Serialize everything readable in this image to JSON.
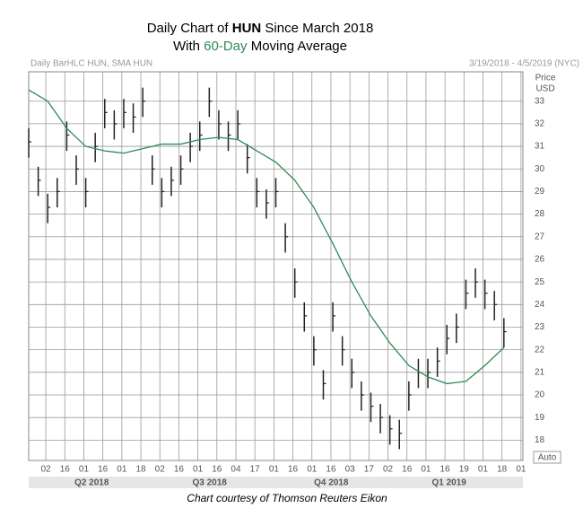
{
  "chart_data": {
    "type": "hlc",
    "title_lines": [
      [
        "Daily Chart of ",
        "HUN",
        " Since March 2018"
      ],
      [
        "With ",
        "60-Day",
        " Moving Average"
      ]
    ],
    "header_left": "Daily BarHLC HUN, SMA HUN",
    "header_right": "3/19/2018 - 4/5/2019 (NYC)",
    "y_label": [
      "Price",
      "USD"
    ],
    "auto_label": "Auto",
    "caption": "Chart courtesy of Thomson Reuters Eikon",
    "quarters": [
      {
        "label": "Q2 2018",
        "value": 19
      },
      {
        "label": "Q3 2018",
        "value": 81
      },
      {
        "label": "Q4 2018",
        "value": 145
      },
      {
        "label": "Q1 2019",
        "value": 207
      }
    ],
    "xlim": [
      0,
      260
    ],
    "ylim": [
      17.1,
      34.3
    ],
    "xticks": [
      {
        "value": 9,
        "label": "02"
      },
      {
        "value": 19,
        "label": "16"
      },
      {
        "value": 29,
        "label": "01"
      },
      {
        "value": 39,
        "label": "16"
      },
      {
        "value": 49,
        "label": "01"
      },
      {
        "value": 59,
        "label": "18"
      },
      {
        "value": 69,
        "label": "02"
      },
      {
        "value": 79,
        "label": "16"
      },
      {
        "value": 89,
        "label": "01"
      },
      {
        "value": 99,
        "label": "16"
      },
      {
        "value": 109,
        "label": "04"
      },
      {
        "value": 119,
        "label": "17"
      },
      {
        "value": 129,
        "label": "01"
      },
      {
        "value": 139,
        "label": "16"
      },
      {
        "value": 149,
        "label": "01"
      },
      {
        "value": 159,
        "label": "16"
      },
      {
        "value": 169,
        "label": "03"
      },
      {
        "value": 179,
        "label": "17"
      },
      {
        "value": 189,
        "label": "02"
      },
      {
        "value": 199,
        "label": "16"
      },
      {
        "value": 209,
        "label": "01"
      },
      {
        "value": 219,
        "label": "16"
      },
      {
        "value": 229,
        "label": "19"
      },
      {
        "value": 239,
        "label": "01"
      },
      {
        "value": 249,
        "label": "18"
      },
      {
        "value": 259,
        "label": "01"
      }
    ],
    "yticks": [
      18,
      19,
      20,
      21,
      22,
      23,
      24,
      25,
      26,
      27,
      28,
      29,
      30,
      31,
      32,
      33
    ],
    "grid": true,
    "bars": {
      "color": "#222222",
      "x": [
        0,
        5,
        10,
        15,
        20,
        25,
        30,
        35,
        40,
        45,
        50,
        55,
        60,
        65,
        70,
        75,
        80,
        85,
        90,
        95,
        100,
        105,
        110,
        115,
        120,
        125,
        130,
        135,
        140,
        145,
        150,
        155,
        160,
        165,
        170,
        175,
        180,
        185,
        190,
        195,
        200,
        205,
        210,
        215,
        220,
        225,
        230,
        235,
        240,
        245,
        250
      ],
      "close": [
        31.2,
        29.5,
        28.3,
        29,
        31.5,
        30,
        29,
        31,
        32.5,
        32,
        32.5,
        32.3,
        33,
        30,
        29,
        29.5,
        30,
        31,
        31.5,
        33,
        32,
        31.5,
        32,
        30.5,
        29,
        28.5,
        29,
        27,
        25,
        23.5,
        22,
        20.5,
        23.5,
        22,
        21,
        20,
        19.5,
        19,
        18.5,
        18.3,
        20,
        21,
        21,
        21.5,
        22.5,
        23,
        24.5,
        25,
        24.5,
        24,
        22.8
      ],
      "high": [
        31.8,
        30.1,
        28.9,
        29.6,
        32.1,
        30.6,
        29.6,
        31.6,
        33.1,
        32.6,
        33.1,
        32.9,
        33.6,
        30.6,
        29.6,
        30.1,
        30.6,
        31.6,
        32.1,
        33.6,
        32.6,
        32.1,
        32.6,
        31.1,
        29.6,
        29.1,
        29.6,
        27.6,
        25.6,
        24.1,
        22.6,
        21.1,
        24.1,
        22.6,
        21.6,
        20.6,
        20.1,
        19.6,
        19.1,
        18.9,
        20.6,
        21.6,
        21.6,
        22.1,
        23.1,
        23.6,
        25.1,
        25.6,
        25.1,
        24.6,
        23.4
      ],
      "low": [
        30.5,
        28.8,
        27.6,
        28.3,
        30.8,
        29.3,
        28.3,
        30.3,
        31.8,
        31.3,
        31.8,
        31.6,
        32.3,
        29.3,
        28.3,
        28.8,
        29.3,
        30.3,
        30.8,
        32.3,
        31.3,
        30.8,
        31.3,
        29.8,
        28.3,
        27.8,
        28.3,
        26.3,
        24.3,
        22.8,
        21.3,
        19.8,
        22.8,
        21.3,
        20.3,
        19.3,
        18.8,
        18.3,
        17.8,
        17.6,
        19.3,
        20.3,
        20.3,
        20.8,
        21.8,
        22.3,
        23.8,
        24.3,
        23.8,
        23.3,
        22.1
      ]
    },
    "sma": {
      "color": "#2e8b57",
      "x": [
        0,
        10,
        20,
        30,
        40,
        50,
        60,
        70,
        80,
        90,
        100,
        110,
        120,
        130,
        140,
        150,
        160,
        170,
        180,
        190,
        200,
        210,
        220,
        230,
        240,
        250
      ],
      "values": [
        33.5,
        33,
        31.8,
        31,
        30.8,
        30.7,
        30.9,
        31.1,
        31.1,
        31.3,
        31.4,
        31.3,
        30.8,
        30.3,
        29.5,
        28.3,
        26.7,
        25,
        23.5,
        22.3,
        21.3,
        20.8,
        20.5,
        20.6,
        21.3,
        22.1
      ]
    }
  }
}
